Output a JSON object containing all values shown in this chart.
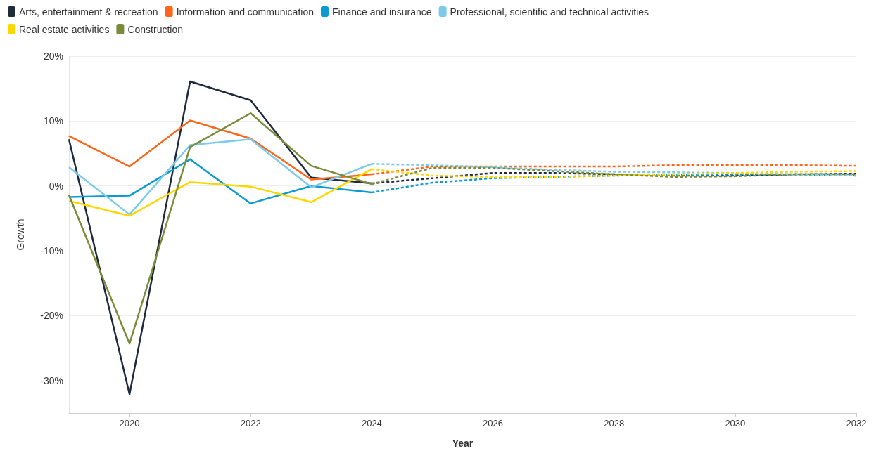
{
  "chart_data": {
    "type": "line",
    "xlabel": "Year",
    "ylabel": "Growth",
    "xlim": [
      2019,
      2032
    ],
    "xticks": [
      2020,
      2022,
      2024,
      2026,
      2028,
      2030,
      2032
    ],
    "ylim": [
      -35,
      20
    ],
    "yticks": [
      {
        "value": -30,
        "label": "-30%"
      },
      {
        "value": -20,
        "label": "-20%"
      },
      {
        "value": -10,
        "label": "-10%"
      },
      {
        "value": 0,
        "label": "0%"
      },
      {
        "value": 10,
        "label": "10%"
      },
      {
        "value": 20,
        "label": "20%"
      }
    ],
    "grid": "y",
    "legend": "top left",
    "marker": "none",
    "series": [
      {
        "name": "Arts, entertainment & recreation",
        "color": "#1f2a3c",
        "line_style": "solid",
        "x": [
          2019,
          2020,
          2021,
          2022,
          2023,
          2024
        ],
        "values": [
          7.2,
          -32.1,
          16.1,
          13.2,
          1.3,
          0.4
        ]
      },
      {
        "name": "Information and communication",
        "color": "#ff6418",
        "line_style": "solid",
        "x": [
          2019,
          2020,
          2021,
          2022,
          2023,
          2024
        ],
        "values": [
          7.7,
          3.0,
          10.1,
          7.3,
          1.0,
          1.8
        ]
      },
      {
        "name": "Finance and insurance",
        "color": "#0a9bd0",
        "line_style": "solid",
        "x": [
          2019,
          2020,
          2021,
          2022,
          2023,
          2024
        ],
        "values": [
          -1.7,
          -1.5,
          4.1,
          -2.7,
          0.0,
          -1.0
        ]
      },
      {
        "name": "Professional, scientific and technical activities",
        "color": "#7ccbea",
        "line_style": "solid",
        "x": [
          2019,
          2020,
          2021,
          2022,
          2023,
          2024
        ],
        "values": [
          2.9,
          -4.4,
          6.3,
          7.2,
          -0.2,
          3.4
        ]
      },
      {
        "name": "Real estate activities",
        "color": "#ffd700",
        "line_style": "solid",
        "x": [
          2019,
          2020,
          2021,
          2022,
          2023,
          2024
        ],
        "values": [
          -2.3,
          -4.6,
          0.6,
          -0.1,
          -2.5,
          2.6
        ]
      },
      {
        "name": "Construction",
        "color": "#7a8c3a",
        "line_style": "solid",
        "x": [
          2019,
          2020,
          2021,
          2022,
          2023,
          2024
        ],
        "values": [
          -1.4,
          -24.3,
          6.0,
          11.2,
          3.1,
          0.3
        ]
      },
      {
        "color": "#1f2a3c",
        "line_style": "dashed",
        "x": [
          2024,
          2025,
          2026,
          2027,
          2028,
          2029,
          2030,
          2031,
          2032
        ],
        "values": [
          0.4,
          1.2,
          2.0,
          2.0,
          1.8,
          1.6,
          1.6,
          1.8,
          1.9
        ]
      },
      {
        "color": "#ff6418",
        "line_style": "dashed",
        "x": [
          2024,
          2025,
          2026,
          2027,
          2028,
          2029,
          2030,
          2031,
          2032
        ],
        "values": [
          1.8,
          3.0,
          3.0,
          3.0,
          3.0,
          3.2,
          3.2,
          3.2,
          3.1
        ]
      },
      {
        "color": "#0a9bd0",
        "line_style": "dashed",
        "x": [
          2024,
          2025,
          2026,
          2027,
          2028,
          2029,
          2030,
          2031,
          2032
        ],
        "values": [
          -1.0,
          0.5,
          1.2,
          1.4,
          1.6,
          1.7,
          1.8,
          1.8,
          1.6
        ]
      },
      {
        "color": "#7ccbea",
        "line_style": "dashed",
        "x": [
          2024,
          2025,
          2026,
          2027,
          2028,
          2029,
          2030,
          2031,
          2032
        ],
        "values": [
          3.4,
          3.2,
          2.9,
          2.5,
          2.2,
          2.1,
          2.0,
          1.8,
          1.6
        ]
      },
      {
        "color": "#ffd700",
        "line_style": "dashed",
        "x": [
          2024,
          2025,
          2026,
          2027,
          2028,
          2029,
          2030,
          2031,
          2032
        ],
        "values": [
          2.6,
          1.6,
          1.4,
          1.4,
          1.6,
          1.8,
          2.0,
          2.2,
          2.3
        ]
      },
      {
        "color": "#7a8c3a",
        "line_style": "dashed",
        "x": [
          2024,
          2025,
          2026,
          2027,
          2028,
          2029,
          2030,
          2031,
          2032
        ],
        "values": [
          0.3,
          2.8,
          2.8,
          2.3,
          1.8,
          1.4,
          1.5,
          1.8,
          1.8
        ]
      }
    ]
  }
}
